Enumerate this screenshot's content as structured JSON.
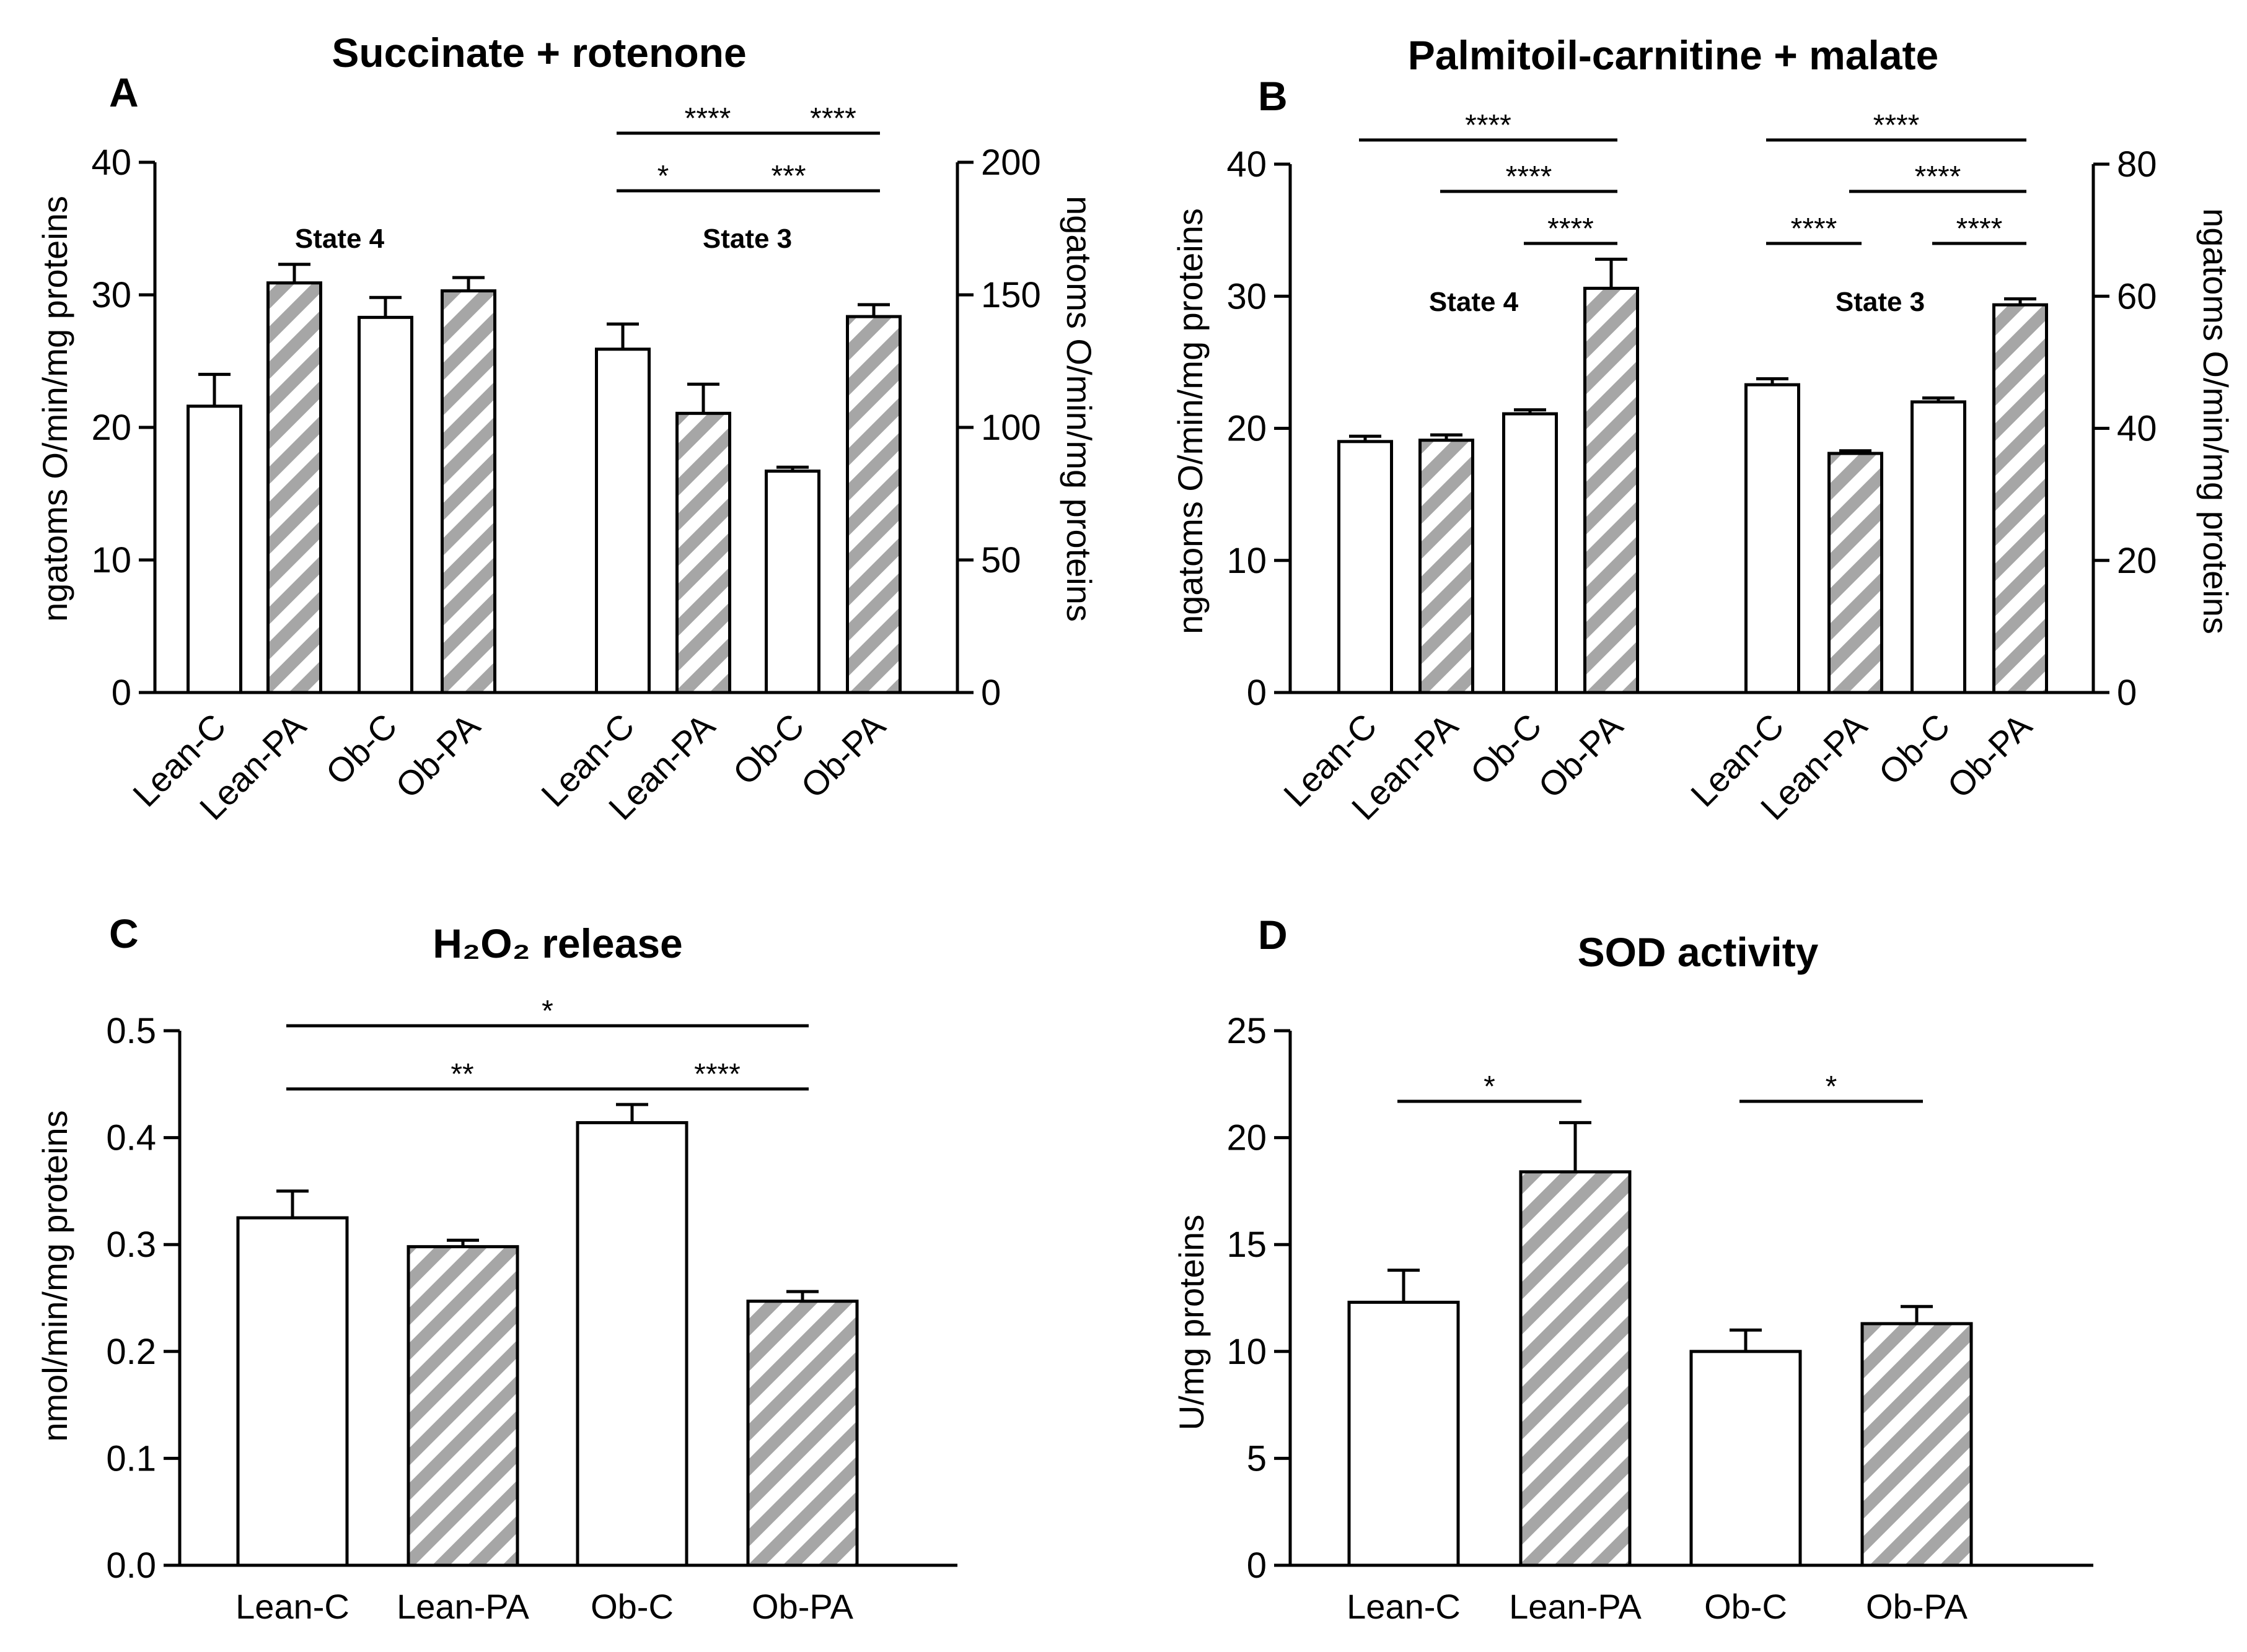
{
  "figure": {
    "panels": [
      "A",
      "B",
      "C",
      "D"
    ]
  },
  "colors": {
    "control_fill": "#ffffff",
    "pa_stripe": "#a6a6a6",
    "stroke": "#000000"
  },
  "chart_data": [
    {
      "panel": "A",
      "type": "bar",
      "title": "Succinate + rotenone",
      "ylabel": "ngatoms O/min/mg proteins",
      "y2label": "ngatoms O/min/mg proteins",
      "ylim": [
        0,
        40
      ],
      "yticks": [
        0,
        10,
        20,
        30,
        40
      ],
      "y2lim": [
        0,
        200
      ],
      "y2ticks": [
        0,
        50,
        100,
        150,
        200
      ],
      "groups": [
        {
          "label": "State 4",
          "axis": "left",
          "categories": [
            "Lean-C",
            "Lean-PA",
            "Ob-C",
            "Ob-PA"
          ],
          "values": [
            21.6,
            30.9,
            28.3,
            30.3
          ],
          "errors": [
            2.4,
            1.4,
            1.5,
            1.0
          ],
          "patterns": [
            "open",
            "hatched",
            "open",
            "hatched"
          ]
        },
        {
          "label": "State 3",
          "axis": "right",
          "categories": [
            "Lean-C",
            "Lean-PA",
            "Ob-C",
            "Ob-PA"
          ],
          "values": [
            129.5,
            105.3,
            83.5,
            141.8
          ],
          "errors": [
            9.5,
            11.0,
            1.5,
            4.5
          ],
          "patterns": [
            "open",
            "hatched",
            "open",
            "hatched"
          ]
        }
      ],
      "significance": [
        {
          "group": 1,
          "from": 0,
          "to": 2,
          "label": "****",
          "level": 0
        },
        {
          "group": 1,
          "from": 2,
          "to": 3,
          "label": "****",
          "level": 0
        },
        {
          "group": 1,
          "from": 0,
          "to": 1,
          "label": "*",
          "level": 1
        },
        {
          "group": 1,
          "from": 1,
          "to": 3,
          "label": "***",
          "level": 1
        }
      ]
    },
    {
      "panel": "B",
      "type": "bar",
      "title": "Palmitoil-carnitine + malate",
      "ylabel": "ngatoms O/min/mg proteins",
      "y2label": "ngatoms O/min/mg proteins",
      "ylim": [
        0,
        40
      ],
      "yticks": [
        0,
        10,
        20,
        30,
        40
      ],
      "y2lim": [
        0,
        80
      ],
      "y2ticks": [
        0,
        20,
        40,
        60,
        80
      ],
      "groups": [
        {
          "label": "State 4",
          "axis": "left",
          "categories": [
            "Lean-C",
            "Lean-PA",
            "Ob-C",
            "Ob-PA"
          ],
          "values": [
            19.0,
            19.1,
            21.1,
            30.6
          ],
          "errors": [
            0.4,
            0.4,
            0.3,
            2.2
          ],
          "patterns": [
            "open",
            "hatched",
            "open",
            "hatched"
          ]
        },
        {
          "label": "State 3",
          "axis": "right",
          "categories": [
            "Lean-C",
            "Lean-PA",
            "Ob-C",
            "Ob-PA"
          ],
          "values": [
            46.6,
            36.2,
            44.0,
            58.7
          ],
          "errors": [
            0.9,
            0.4,
            0.6,
            0.9
          ],
          "patterns": [
            "open",
            "hatched",
            "open",
            "hatched"
          ]
        }
      ],
      "significance": [
        {
          "group": 0,
          "from": 0,
          "to": 3,
          "label": "****",
          "level": 0
        },
        {
          "group": 0,
          "from": 1,
          "to": 3,
          "label": "****",
          "level": 1
        },
        {
          "group": 0,
          "from": 2,
          "to": 3,
          "label": "****",
          "level": 2
        },
        {
          "group": 1,
          "from": 0,
          "to": 3,
          "label": "****",
          "level": 0
        },
        {
          "group": 1,
          "from": 1,
          "to": 3,
          "label": "****",
          "level": 1
        },
        {
          "group": 1,
          "from": 0,
          "to": 1,
          "label": "****",
          "level": 2
        },
        {
          "group": 1,
          "from": 2,
          "to": 3,
          "label": "****",
          "level": 2
        }
      ]
    },
    {
      "panel": "C",
      "type": "bar",
      "title": "H₂O₂ release",
      "ylabel": "nmol/min/mg proteins",
      "ylim": [
        0,
        0.5
      ],
      "yticks": [
        "0.0",
        "0.1",
        "0.2",
        "0.3",
        "0.4",
        "0.5"
      ],
      "categories": [
        "Lean-C",
        "Lean-PA",
        "Ob-C",
        "Ob-PA"
      ],
      "values": [
        0.325,
        0.298,
        0.414,
        0.247
      ],
      "errors": [
        0.025,
        0.006,
        0.017,
        0.009
      ],
      "patterns": [
        "open",
        "hatched",
        "open",
        "hatched"
      ],
      "significance": [
        {
          "from": 0,
          "to": 3,
          "label": "*",
          "level": 0
        },
        {
          "from": 0,
          "to": 2,
          "label": "**",
          "level": 1
        },
        {
          "from": 2,
          "to": 3,
          "label": "****",
          "level": 1
        }
      ]
    },
    {
      "panel": "D",
      "type": "bar",
      "title": "SOD activity",
      "ylabel": "U/mg proteins",
      "ylim": [
        0,
        25
      ],
      "yticks": [
        0,
        5,
        10,
        15,
        20,
        25
      ],
      "categories": [
        "Lean-C",
        "Lean-PA",
        "Ob-C",
        "Ob-PA"
      ],
      "values": [
        12.3,
        18.4,
        10.0,
        11.3
      ],
      "errors": [
        1.5,
        2.3,
        1.0,
        0.8
      ],
      "patterns": [
        "open",
        "hatched",
        "open",
        "hatched"
      ],
      "significance": [
        {
          "from": 0,
          "to": 1,
          "label": "*",
          "level": 0
        },
        {
          "from": 2,
          "to": 3,
          "label": "*",
          "level": 0
        }
      ]
    }
  ]
}
